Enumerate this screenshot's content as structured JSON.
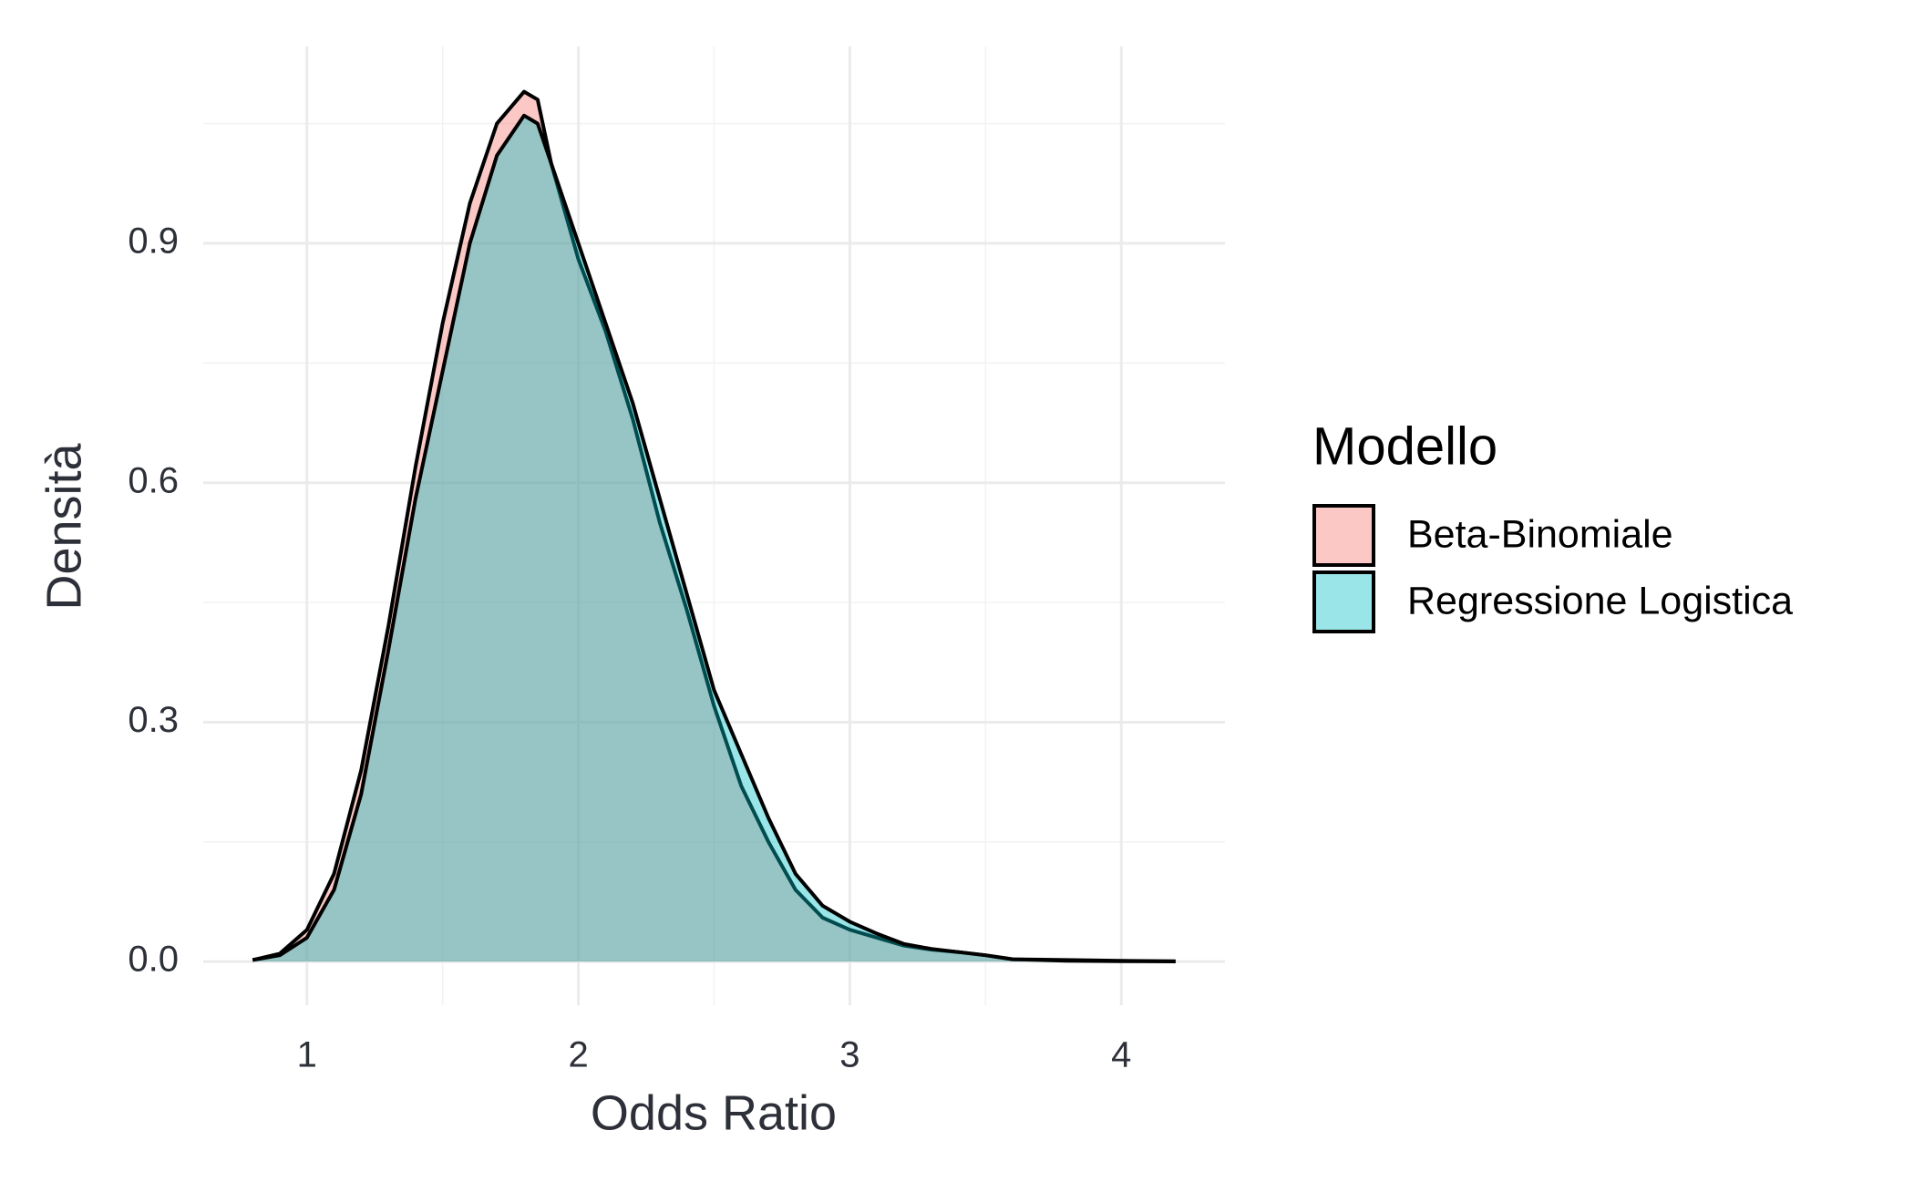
{
  "chart_data": {
    "type": "density",
    "x_label": "Odds Ratio",
    "y_label": "Densità",
    "legend_title": "Modello",
    "legend_position": "right",
    "x": [
      0.8,
      0.9,
      1.0,
      1.1,
      1.2,
      1.3,
      1.4,
      1.5,
      1.6,
      1.7,
      1.8,
      1.85,
      1.9,
      2.0,
      2.1,
      2.2,
      2.3,
      2.4,
      2.5,
      2.6,
      2.7,
      2.8,
      2.9,
      3.0,
      3.1,
      3.2,
      3.3,
      3.4,
      3.5,
      3.6,
      3.8,
      4.0,
      4.2
    ],
    "series": [
      {
        "name": "Beta-Binomiale",
        "color": "#F8766D",
        "alpha": 0.4,
        "values": [
          0.002,
          0.01,
          0.04,
          0.11,
          0.24,
          0.42,
          0.62,
          0.8,
          0.95,
          1.05,
          1.09,
          1.08,
          1.0,
          0.88,
          0.79,
          0.68,
          0.55,
          0.44,
          0.32,
          0.22,
          0.15,
          0.09,
          0.055,
          0.04,
          0.03,
          0.02,
          0.015,
          0.012,
          0.008,
          0.003,
          0.001,
          0.0005,
          0.0002
        ]
      },
      {
        "name": "Regressione Logistica",
        "color": "#00BFC4",
        "alpha": 0.4,
        "values": [
          0.002,
          0.008,
          0.03,
          0.09,
          0.21,
          0.39,
          0.58,
          0.74,
          0.9,
          1.01,
          1.06,
          1.05,
          1.0,
          0.9,
          0.8,
          0.7,
          0.58,
          0.46,
          0.34,
          0.26,
          0.18,
          0.11,
          0.07,
          0.05,
          0.035,
          0.022,
          0.016,
          0.012,
          0.008,
          0.003,
          0.002,
          0.001,
          0.0005
        ]
      }
    ],
    "xlim": [
      0.618,
      4.382
    ],
    "ylim": [
      -0.0546,
      1.1466
    ],
    "xticks": [
      1,
      2,
      3,
      4
    ],
    "yticks": [
      {
        "value": 0,
        "label": "0.0"
      },
      0.3,
      0.6,
      0.9
    ],
    "x_minor_ticks": [
      1.5,
      2.5,
      3.5
    ],
    "y_minor_ticks": [
      0.15,
      0.45,
      0.75,
      1.05
    ],
    "grid": true
  }
}
